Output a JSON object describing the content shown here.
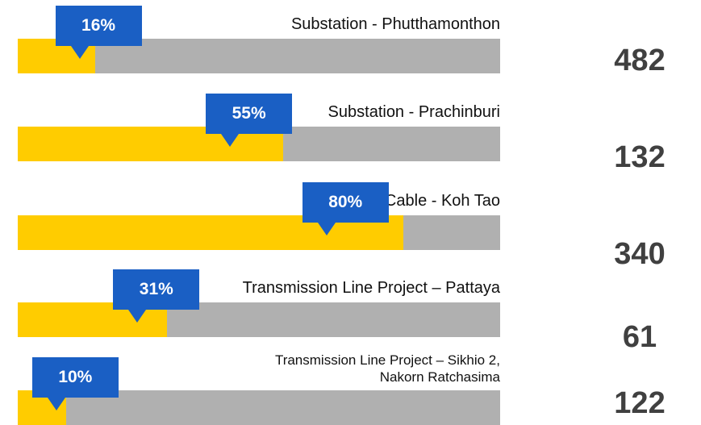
{
  "chart_data": {
    "type": "progress",
    "categories": [
      "Substation - Phutthamonthon",
      "Substation - Prachinburi",
      "Submarine Cable - Koh Tao",
      "Transmission Line Project – Pattaya",
      "Transmission Line Project – Sikhio 2,\nNakorn Ratchasima"
    ],
    "values": [
      16,
      55,
      80,
      31,
      10
    ],
    "value_labels": [
      "16%",
      "55%",
      "80%",
      "31%",
      "10%"
    ],
    "totals": [
      482,
      132,
      340,
      61,
      122
    ],
    "xlim": [
      0,
      100
    ],
    "color": "#ffcc00",
    "track_color": "#b0b0b0",
    "callout_color": "#1a5fc4"
  }
}
